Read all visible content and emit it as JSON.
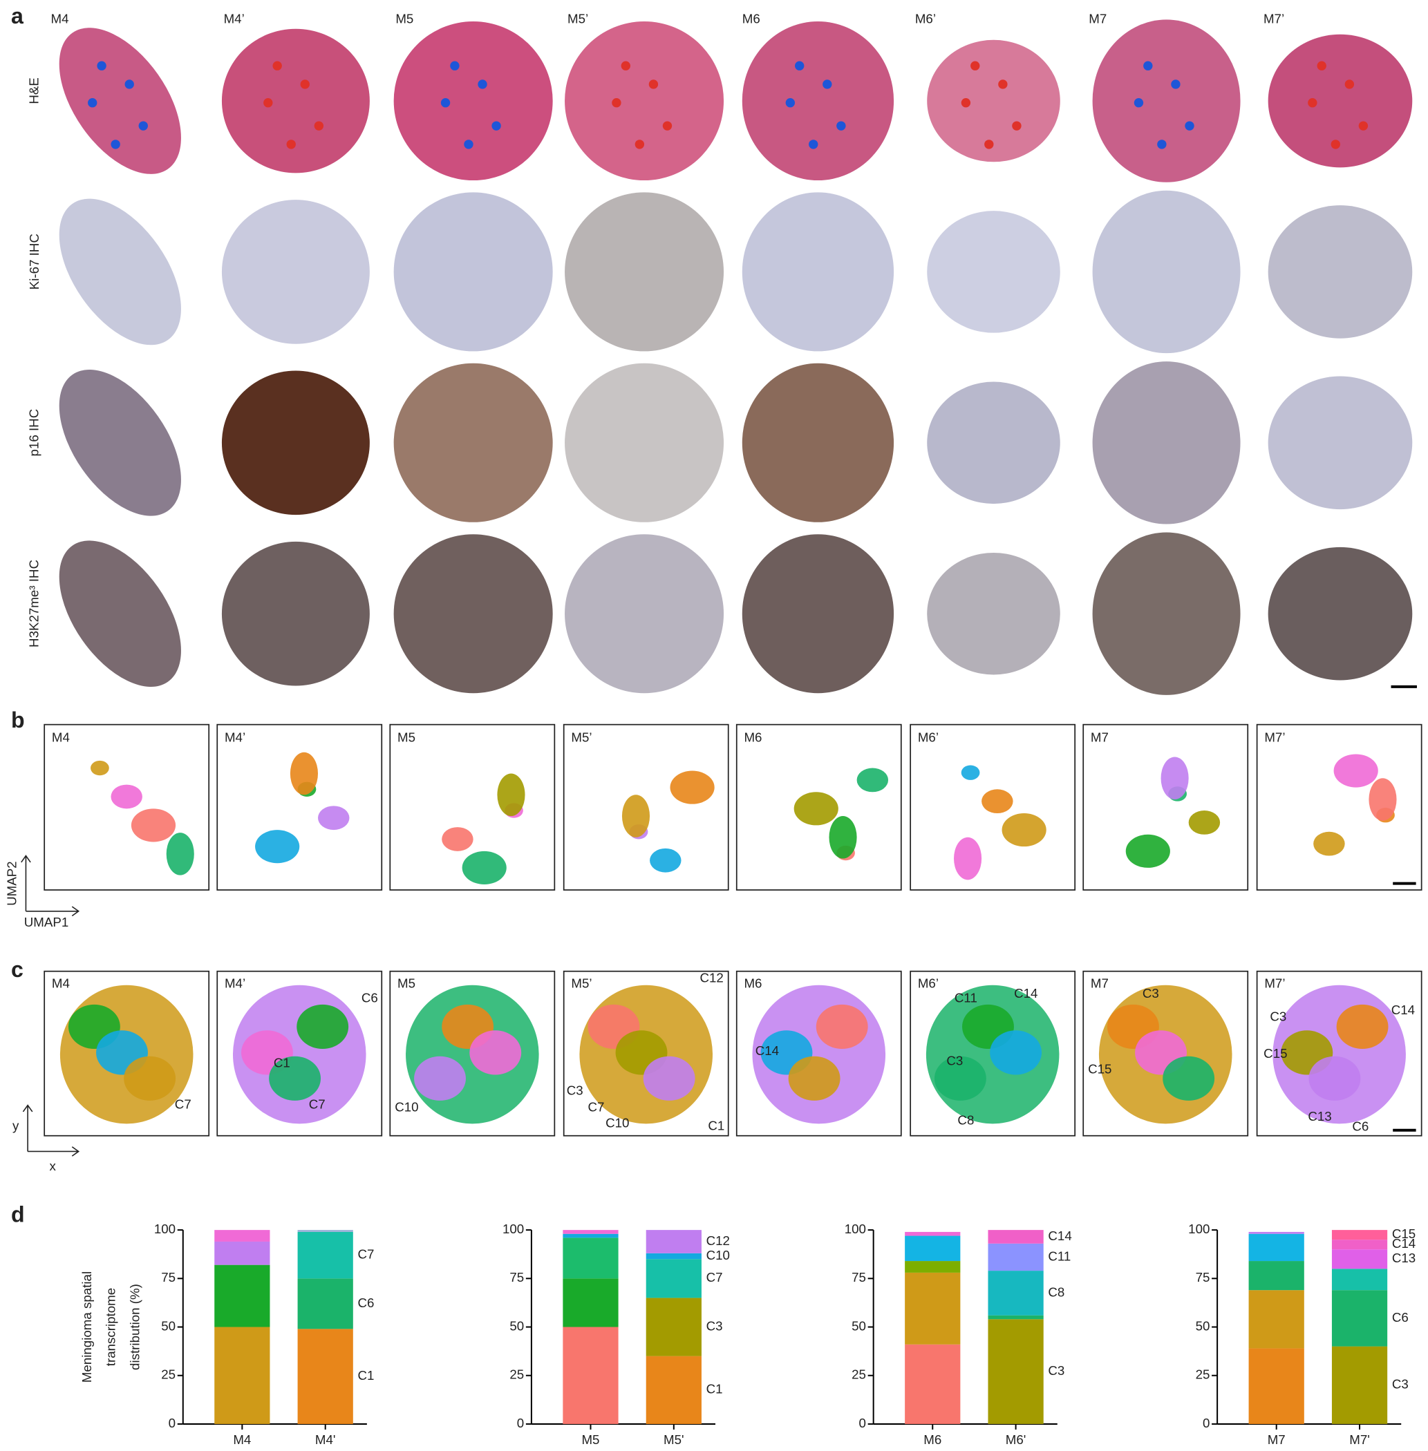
{
  "panel_labels": [
    "a",
    "b",
    "c",
    "d"
  ],
  "samples": [
    {
      "name": "M4",
      "color": "#1e56d8"
    },
    {
      "name": "M4’",
      "color": "#e0322a"
    },
    {
      "name": "M5",
      "color": "#1e56d8"
    },
    {
      "name": "M5’",
      "color": "#e0322a"
    },
    {
      "name": "M6",
      "color": "#1e56d8"
    },
    {
      "name": "M6’",
      "color": "#e0322a"
    },
    {
      "name": "M7",
      "color": "#1e56d8"
    },
    {
      "name": "M7’",
      "color": "#e0322a"
    }
  ],
  "stain_rows": [
    "H&E",
    "Ki-67 IHC",
    "p16 IHC",
    "H3K27me³ IHC"
  ],
  "umap_axes": {
    "y": "UMAP2",
    "x": "UMAP1"
  },
  "spatial_axes": {
    "y": "y",
    "x": "x"
  },
  "cluster_annotations": [
    [
      {
        "label": "C7",
        "color": "#17b8a0"
      }
    ],
    [
      {
        "label": "C6",
        "color": "#1bb36a"
      },
      {
        "label": "C1",
        "color": "#e8861a"
      },
      {
        "label": "C7",
        "color": "#17b8a0"
      }
    ],
    [
      {
        "label": "C10",
        "color": "#14a9e0"
      }
    ],
    [
      {
        "label": "C12",
        "color": "#c07ef0"
      },
      {
        "label": "C3",
        "color": "#a39b00"
      },
      {
        "label": "C7",
        "color": "#17b8a0"
      },
      {
        "label": "C10",
        "color": "#14a9e0"
      },
      {
        "label": "C1",
        "color": "#e8861a"
      }
    ],
    [
      {
        "label": "C14",
        "color": "#f060c8"
      }
    ],
    [
      {
        "label": "C11",
        "color": "#8b93ff"
      },
      {
        "label": "C14",
        "color": "#f060c8"
      },
      {
        "label": "C3",
        "color": "#a39b00"
      },
      {
        "label": "C8",
        "color": "#17b8c0"
      }
    ],
    [
      {
        "label": "C3",
        "color": "#a39b00"
      },
      {
        "label": "C15",
        "color": "#ff5f9a"
      }
    ],
    [
      {
        "label": "C3",
        "color": "#a39b00"
      },
      {
        "label": "C14",
        "color": "#f060c8"
      },
      {
        "label": "C15",
        "color": "#ff5f9a"
      },
      {
        "label": "C13",
        "color": "#e060e8"
      },
      {
        "label": "C6",
        "color": "#1bb36a"
      }
    ]
  ],
  "chart_data": [
    {
      "type": "bar",
      "stacked": true,
      "ylabel": [
        "Meningioma spatial",
        "transcriptome",
        "distribution (%)"
      ],
      "categories": [
        "M4",
        "M4'"
      ],
      "stacks": [
        {
          "segments": [
            {
              "color": "#cf9a18",
              "value": 50
            },
            {
              "color": "#19aa2a",
              "value": 32
            },
            {
              "color": "#c07ef0",
              "value": 12
            },
            {
              "color": "#f06ad6",
              "value": 6
            }
          ]
        },
        {
          "segments": [
            {
              "name": "C1",
              "color": "#e8861a",
              "value": 49
            },
            {
              "name": "C6",
              "color": "#1bb36a",
              "value": 26
            },
            {
              "name": "C7",
              "color": "#17c0a8",
              "value": 24
            },
            {
              "color": "#9ab0d8",
              "value": 1
            }
          ]
        }
      ],
      "ylim": [
        0,
        100
      ],
      "yticks": [
        0,
        25,
        50,
        75,
        100
      ]
    },
    {
      "type": "bar",
      "stacked": true,
      "categories": [
        "M5",
        "M5'"
      ],
      "stacks": [
        {
          "segments": [
            {
              "color": "#f8766d",
              "value": 50
            },
            {
              "color": "#19aa2a",
              "value": 25
            },
            {
              "color": "#1cbc6c",
              "value": 21
            },
            {
              "color": "#14a9e0",
              "value": 2
            },
            {
              "color": "#f06ad6",
              "value": 2
            }
          ]
        },
        {
          "segments": [
            {
              "name": "C1",
              "color": "#e8861a",
              "value": 35
            },
            {
              "name": "C3",
              "color": "#a39b00",
              "value": 30
            },
            {
              "name": "C7",
              "color": "#17c0a8",
              "value": 20
            },
            {
              "name": "C10",
              "color": "#14a9e0",
              "value": 3
            },
            {
              "name": "C12",
              "color": "#c07ef0",
              "value": 12
            }
          ]
        }
      ],
      "ylim": [
        0,
        100
      ],
      "yticks": [
        0,
        25,
        50,
        75,
        100
      ]
    },
    {
      "type": "bar",
      "stacked": true,
      "categories": [
        "M6",
        "M6'"
      ],
      "stacks": [
        {
          "segments": [
            {
              "color": "#f8766d",
              "value": 41
            },
            {
              "color": "#cf9a18",
              "value": 37
            },
            {
              "color": "#7cae00",
              "value": 6
            },
            {
              "color": "#14b4e4",
              "value": 13
            },
            {
              "color": "#f06ad6",
              "value": 2
            }
          ]
        },
        {
          "segments": [
            {
              "name": "C3",
              "color": "#a39b00",
              "value": 54
            },
            {
              "color": "#1bb36a",
              "value": 2
            },
            {
              "name": "C8",
              "color": "#17b8c0",
              "value": 23
            },
            {
              "name": "C11",
              "color": "#8b93ff",
              "value": 14
            },
            {
              "name": "C14",
              "color": "#f060c8",
              "value": 7
            }
          ]
        }
      ],
      "ylim": [
        0,
        100
      ],
      "yticks": [
        0,
        25,
        50,
        75,
        100
      ]
    },
    {
      "type": "bar",
      "stacked": true,
      "categories": [
        "M7",
        "M7'"
      ],
      "stacks": [
        {
          "segments": [
            {
              "color": "#e8861a",
              "value": 39
            },
            {
              "color": "#cf9a18",
              "value": 30
            },
            {
              "color": "#1bb36a",
              "value": 15
            },
            {
              "color": "#14b4e4",
              "value": 14
            },
            {
              "color": "#c07ef0",
              "value": 1
            }
          ]
        },
        {
          "segments": [
            {
              "name": "C3",
              "color": "#a39b00",
              "value": 40
            },
            {
              "name": "C6",
              "color": "#1bb36a",
              "value": 29
            },
            {
              "color": "#17c0a8",
              "value": 11
            },
            {
              "name": "C13",
              "color": "#e060e8",
              "value": 10
            },
            {
              "name": "C14",
              "color": "#f060c8",
              "value": 5
            },
            {
              "name": "C15",
              "color": "#ff5f9a",
              "value": 5
            }
          ]
        }
      ],
      "ylim": [
        0,
        100
      ],
      "yticks": [
        0,
        25,
        50,
        75,
        100
      ]
    }
  ]
}
